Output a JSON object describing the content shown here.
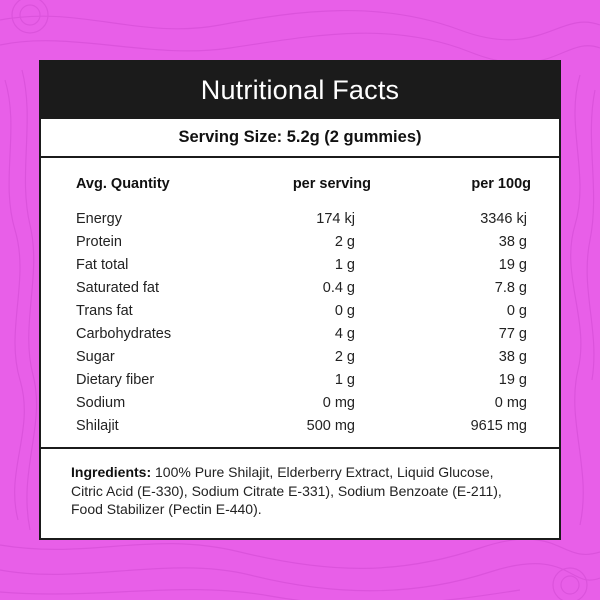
{
  "colors": {
    "background": "#e85fe8",
    "pattern_line": "#d44fd6",
    "panel": "#ffffff",
    "border": "#1b1b1b"
  },
  "title": "Nutritional Facts",
  "serving_size": "Serving Size: 5.2g (2 gummies)",
  "table": {
    "headers": [
      "Avg. Quantity",
      "per serving",
      "per 100g"
    ],
    "rows": [
      [
        "Energy",
        "174 kj",
        "3346 kj"
      ],
      [
        "Protein",
        "2 g",
        "38 g"
      ],
      [
        "Fat total",
        "1 g",
        "19 g"
      ],
      [
        "Saturated fat",
        "0.4 g",
        "7.8 g"
      ],
      [
        "Trans fat",
        "0 g",
        "0 g"
      ],
      [
        "Carbohydrates",
        "4 g",
        "77 g"
      ],
      [
        "Sugar",
        "2 g",
        "38 g"
      ],
      [
        "Dietary fiber",
        "1 g",
        "19 g"
      ],
      [
        "Sodium",
        "0 mg",
        "0 mg"
      ],
      [
        "Shilajit",
        "500 mg",
        "9615 mg"
      ]
    ]
  },
  "ingredients": {
    "label": "Ingredients:",
    "text": " 100% Pure Shilajit, Elderberry Extract, Liquid Glucose, Citric Acid (E-330), Sodium Citrate E-331), Sodium Benzoate (E-211), Food Stabilizer (Pectin E-440)."
  }
}
